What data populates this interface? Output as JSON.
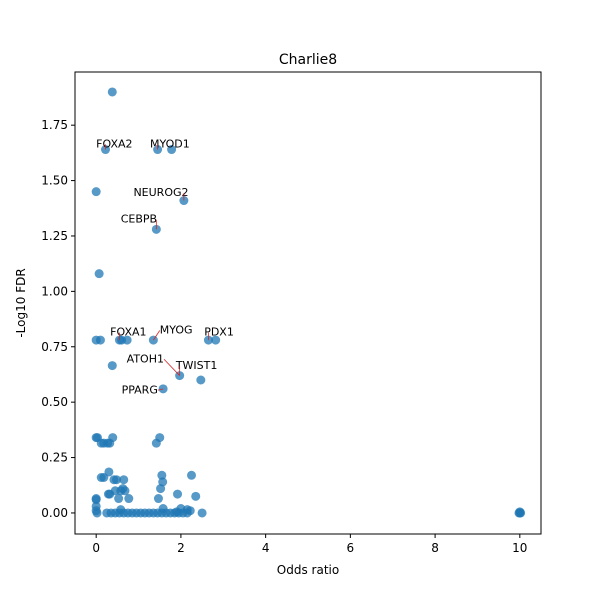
{
  "chart_data": {
    "type": "scatter",
    "title": "Charlie8",
    "xlabel": "Odds ratio",
    "ylabel": "-Log10 FDR",
    "xlim": [
      -0.5,
      10.5
    ],
    "ylim": [
      -0.095,
      1.99
    ],
    "xticks": [
      0,
      2,
      4,
      6,
      8,
      10
    ],
    "xtick_labels": [
      "0",
      "2",
      "4",
      "6",
      "8",
      "10"
    ],
    "yticks": [
      0,
      0.25,
      0.5,
      0.75,
      1.0,
      1.25,
      1.5,
      1.75
    ],
    "ytick_labels": [
      "0.00",
      "0.25",
      "0.50",
      "0.75",
      "1.00",
      "1.25",
      "1.50",
      "1.75"
    ],
    "grid": false,
    "marker_color": "#1f77b4",
    "annotation_line_color": "#d62728",
    "points": [
      [
        0.38,
        1.9
      ],
      [
        0.22,
        1.64
      ],
      [
        1.45,
        1.64
      ],
      [
        1.78,
        1.64
      ],
      [
        0.0,
        1.45
      ],
      [
        2.07,
        1.41
      ],
      [
        1.42,
        1.28
      ],
      [
        0.07,
        1.08
      ],
      [
        0.0,
        0.78
      ],
      [
        0.1,
        0.78
      ],
      [
        0.55,
        0.78
      ],
      [
        0.6,
        0.78
      ],
      [
        0.73,
        0.78
      ],
      [
        1.35,
        0.78
      ],
      [
        2.65,
        0.78
      ],
      [
        2.82,
        0.78
      ],
      [
        0.38,
        0.665
      ],
      [
        1.97,
        0.62
      ],
      [
        2.47,
        0.6
      ],
      [
        1.58,
        0.56
      ],
      [
        0.0,
        0.34
      ],
      [
        0.03,
        0.34
      ],
      [
        0.39,
        0.34
      ],
      [
        1.5,
        0.34
      ],
      [
        1.42,
        0.315
      ],
      [
        0.12,
        0.315
      ],
      [
        0.18,
        0.315
      ],
      [
        0.27,
        0.315
      ],
      [
        0.32,
        0.315
      ],
      [
        0.3,
        0.185
      ],
      [
        1.55,
        0.17
      ],
      [
        2.25,
        0.17
      ],
      [
        0.12,
        0.16
      ],
      [
        0.18,
        0.16
      ],
      [
        0.42,
        0.15
      ],
      [
        0.48,
        0.15
      ],
      [
        0.65,
        0.15
      ],
      [
        1.57,
        0.14
      ],
      [
        0.63,
        0.11
      ],
      [
        0.45,
        0.1
      ],
      [
        0.58,
        0.1
      ],
      [
        0.68,
        0.1
      ],
      [
        1.52,
        0.11
      ],
      [
        1.92,
        0.085
      ],
      [
        0.29,
        0.085
      ],
      [
        0.32,
        0.085
      ],
      [
        2.35,
        0.075
      ],
      [
        0.53,
        0.065
      ],
      [
        0.77,
        0.065
      ],
      [
        1.47,
        0.065
      ],
      [
        0.0,
        0.065
      ],
      [
        0.0,
        0.06
      ],
      [
        0.0,
        0.03
      ],
      [
        0.0,
        0.01
      ],
      [
        0.02,
        0.0
      ],
      [
        0.25,
        0.0
      ],
      [
        0.35,
        0.0
      ],
      [
        0.45,
        0.0
      ],
      [
        0.55,
        0.0
      ],
      [
        0.65,
        0.0
      ],
      [
        0.75,
        0.0
      ],
      [
        0.85,
        0.0
      ],
      [
        0.95,
        0.0
      ],
      [
        1.05,
        0.0
      ],
      [
        1.15,
        0.0
      ],
      [
        1.25,
        0.0
      ],
      [
        1.35,
        0.0
      ],
      [
        1.45,
        0.0
      ],
      [
        1.55,
        0.0
      ],
      [
        1.65,
        0.0
      ],
      [
        1.75,
        0.0
      ],
      [
        1.85,
        0.0
      ],
      [
        1.95,
        0.0
      ],
      [
        2.05,
        0.0
      ],
      [
        2.15,
        0.0
      ],
      [
        2.5,
        0.0
      ],
      [
        0.58,
        0.015
      ],
      [
        1.58,
        0.02
      ],
      [
        2.0,
        0.02
      ],
      [
        2.15,
        0.015
      ],
      [
        2.22,
        0.01
      ],
      [
        1.9,
        0.005
      ],
      [
        10.0,
        0.0
      ],
      [
        10.0,
        0.005
      ],
      [
        9.98,
        0.0
      ],
      [
        10.02,
        0.0
      ]
    ],
    "annotations": [
      {
        "text": "FOXA2",
        "x": 0.22,
        "y": 1.64,
        "tx": 0.0,
        "ty": 1.65
      },
      {
        "text": "MYOD1",
        "x": 1.45,
        "y": 1.64,
        "tx": 1.27,
        "ty": 1.65
      },
      {
        "text": "NEUROG2",
        "x": 2.07,
        "y": 1.41,
        "tx": 0.88,
        "ty": 1.43
      },
      {
        "text": "CEBPB",
        "x": 1.42,
        "y": 1.28,
        "tx": 0.58,
        "ty": 1.31
      },
      {
        "text": "FOXA1",
        "x": 0.55,
        "y": 0.78,
        "tx": 0.33,
        "ty": 0.8
      },
      {
        "text": "MYOG",
        "x": 1.35,
        "y": 0.78,
        "tx": 1.5,
        "ty": 0.81
      },
      {
        "text": "PDX1",
        "x": 2.65,
        "y": 0.78,
        "tx": 2.55,
        "ty": 0.8
      },
      {
        "text": "ATOH1",
        "x": 1.97,
        "y": 0.62,
        "tx": 0.72,
        "ty": 0.68
      },
      {
        "text": "TWIST1",
        "x": 1.97,
        "y": 0.62,
        "tx": 1.88,
        "ty": 0.65
      },
      {
        "text": "PPARG",
        "x": 1.58,
        "y": 0.56,
        "tx": 0.6,
        "ty": 0.54
      }
    ]
  }
}
